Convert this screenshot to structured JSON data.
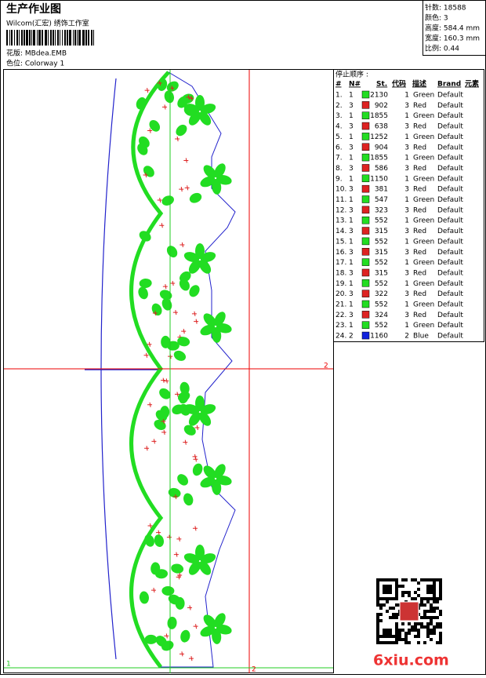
{
  "header": {
    "title": "生产作业图",
    "subtitle": "Wilcom(汇宏) 绣饰工作室",
    "design": "花版: MBdea.EMB",
    "colorway": "色位: Colorway 1"
  },
  "stats": [
    "针数: 18588",
    "颜色: 3",
    "高度: 584.4 mm",
    "宽度: 160.3 mm",
    "比例: 0.44"
  ],
  "markers": {
    "h_right": "2",
    "v_bottom": "2",
    "origin": "1"
  },
  "table": {
    "title": "停止顺序 :",
    "columns": [
      "#",
      "N#",
      "St.",
      "代码",
      "描述",
      "Brand",
      "元素"
    ],
    "rows": [
      [
        "1.",
        "1",
        "#22dd22",
        "2130",
        "1",
        "Green",
        "Default"
      ],
      [
        "2.",
        "3",
        "#dd2222",
        "902",
        "3",
        "Red",
        "Default"
      ],
      [
        "3.",
        "1",
        "#22dd22",
        "1855",
        "1",
        "Green",
        "Default"
      ],
      [
        "4.",
        "3",
        "#dd2222",
        "638",
        "3",
        "Red",
        "Default"
      ],
      [
        "5.",
        "1",
        "#22dd22",
        "1252",
        "1",
        "Green",
        "Default"
      ],
      [
        "6.",
        "3",
        "#dd2222",
        "904",
        "3",
        "Red",
        "Default"
      ],
      [
        "7.",
        "1",
        "#22dd22",
        "1855",
        "1",
        "Green",
        "Default"
      ],
      [
        "8.",
        "3",
        "#dd2222",
        "586",
        "3",
        "Red",
        "Default"
      ],
      [
        "9.",
        "1",
        "#22dd22",
        "1150",
        "1",
        "Green",
        "Default"
      ],
      [
        "10.",
        "3",
        "#dd2222",
        "381",
        "3",
        "Red",
        "Default"
      ],
      [
        "11.",
        "1",
        "#22dd22",
        "547",
        "1",
        "Green",
        "Default"
      ],
      [
        "12.",
        "3",
        "#dd2222",
        "323",
        "3",
        "Red",
        "Default"
      ],
      [
        "13.",
        "1",
        "#22dd22",
        "552",
        "1",
        "Green",
        "Default"
      ],
      [
        "14.",
        "3",
        "#dd2222",
        "315",
        "3",
        "Red",
        "Default"
      ],
      [
        "15.",
        "1",
        "#22dd22",
        "552",
        "1",
        "Green",
        "Default"
      ],
      [
        "16.",
        "3",
        "#dd2222",
        "315",
        "3",
        "Red",
        "Default"
      ],
      [
        "17.",
        "1",
        "#22dd22",
        "552",
        "1",
        "Green",
        "Default"
      ],
      [
        "18.",
        "3",
        "#dd2222",
        "315",
        "3",
        "Red",
        "Default"
      ],
      [
        "19.",
        "1",
        "#22dd22",
        "552",
        "1",
        "Green",
        "Default"
      ],
      [
        "20.",
        "3",
        "#dd2222",
        "322",
        "3",
        "Red",
        "Default"
      ],
      [
        "21.",
        "1",
        "#22dd22",
        "552",
        "1",
        "Green",
        "Default"
      ],
      [
        "22.",
        "3",
        "#dd2222",
        "324",
        "3",
        "Red",
        "Default"
      ],
      [
        "23.",
        "1",
        "#22dd22",
        "552",
        "1",
        "Green",
        "Default"
      ],
      [
        "24.",
        "2",
        "#1122dd",
        "1160",
        "2",
        "Blue",
        "Default"
      ]
    ]
  },
  "watermark": "6xiu.com"
}
